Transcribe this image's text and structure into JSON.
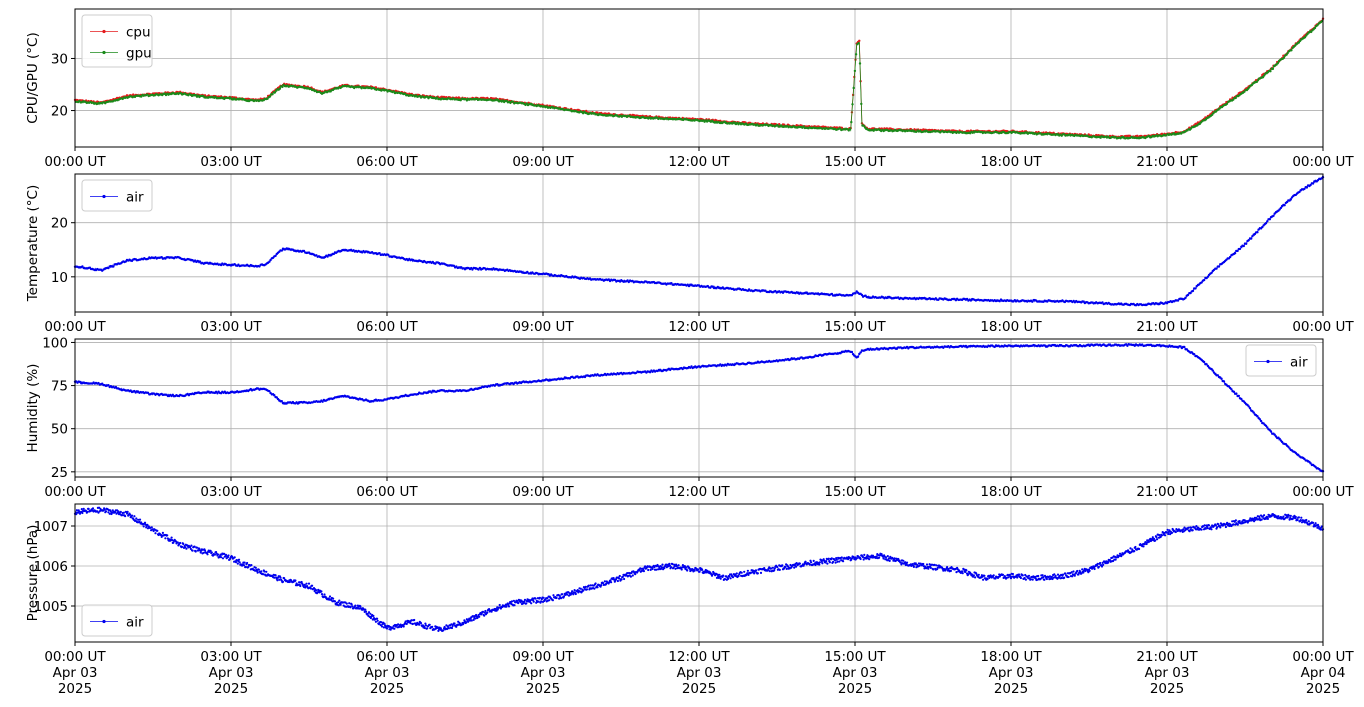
{
  "chart_data": [
    {
      "type": "line",
      "ylabel": "CPU/GPU (°C)",
      "ylim": [
        13,
        39.5
      ],
      "yticks": [
        20,
        30
      ],
      "grid": true,
      "legend_position": "upper-left",
      "x_tick_labels": [
        "00:00 UT",
        "03:00 UT",
        "06:00 UT",
        "09:00 UT",
        "12:00 UT",
        "15:00 UT",
        "18:00 UT",
        "21:00 UT",
        "00:00 UT"
      ],
      "x": [
        "2025-04-03T00:00",
        "2025-04-03T00:30",
        "2025-04-03T01:00",
        "2025-04-03T01:30",
        "2025-04-03T02:00",
        "2025-04-03T02:30",
        "2025-04-03T03:00",
        "2025-04-03T03:30",
        "2025-04-03T03:40",
        "2025-04-03T04:00",
        "2025-04-03T04:30",
        "2025-04-03T04:45",
        "2025-04-03T05:10",
        "2025-04-03T05:40",
        "2025-04-03T06:00",
        "2025-04-03T06:30",
        "2025-04-03T07:00",
        "2025-04-03T07:30",
        "2025-04-03T08:00",
        "2025-04-03T09:00",
        "2025-04-03T10:00",
        "2025-04-03T11:00",
        "2025-04-03T12:00",
        "2025-04-03T13:00",
        "2025-04-03T14:00",
        "2025-04-03T14:55",
        "2025-04-03T15:02",
        "2025-04-03T15:05",
        "2025-04-03T15:08",
        "2025-04-03T15:15",
        "2025-04-03T16:00",
        "2025-04-03T17:00",
        "2025-04-03T18:00",
        "2025-04-03T19:00",
        "2025-04-03T20:00",
        "2025-04-03T20:30",
        "2025-04-03T21:00",
        "2025-04-03T21:20",
        "2025-04-03T21:40",
        "2025-04-03T22:00",
        "2025-04-03T22:30",
        "2025-04-03T23:00",
        "2025-04-03T23:30",
        "2025-04-04T00:00"
      ],
      "series": [
        {
          "name": "cpu",
          "color": "#e41a1c",
          "values": [
            22,
            21.5,
            22.8,
            23.2,
            23.5,
            22.8,
            22.5,
            22,
            22.3,
            25,
            24.5,
            23.5,
            24.8,
            24.5,
            24,
            23,
            22.5,
            22.3,
            22.3,
            21,
            19.5,
            18.8,
            18.3,
            17.5,
            17,
            16.5,
            33,
            33.5,
            17.5,
            16.5,
            16.3,
            16,
            16,
            15.5,
            15,
            15,
            15.5,
            16,
            18,
            20.5,
            24,
            28,
            33,
            37.5
          ]
        },
        {
          "name": "gpu",
          "color": "#1a8a1a",
          "values": [
            21.8,
            21.3,
            22.6,
            23,
            23.3,
            22.6,
            22.3,
            21.8,
            22.1,
            24.8,
            24.3,
            23.3,
            24.6,
            24.3,
            23.8,
            22.8,
            22.3,
            22.1,
            22.1,
            20.8,
            19.3,
            18.6,
            18.1,
            17.3,
            16.8,
            16.3,
            32.5,
            33,
            17.3,
            16.3,
            16.1,
            15.8,
            15.8,
            15.3,
            14.8,
            14.8,
            15.3,
            15.8,
            17.8,
            20.3,
            23.8,
            27.8,
            32.8,
            37.3
          ]
        }
      ]
    },
    {
      "type": "line",
      "ylabel": "Temperature (°C)",
      "ylim": [
        3.5,
        29
      ],
      "yticks": [
        10,
        20
      ],
      "grid": true,
      "legend_position": "upper-left",
      "x_tick_labels": [
        "00:00 UT",
        "03:00 UT",
        "06:00 UT",
        "09:00 UT",
        "12:00 UT",
        "15:00 UT",
        "18:00 UT",
        "21:00 UT",
        "00:00 UT"
      ],
      "x": [
        "2025-04-03T00:00",
        "2025-04-03T00:30",
        "2025-04-03T01:00",
        "2025-04-03T01:30",
        "2025-04-03T02:00",
        "2025-04-03T02:30",
        "2025-04-03T03:00",
        "2025-04-03T03:30",
        "2025-04-03T03:40",
        "2025-04-03T04:00",
        "2025-04-03T04:30",
        "2025-04-03T04:45",
        "2025-04-03T05:10",
        "2025-04-03T05:40",
        "2025-04-03T06:00",
        "2025-04-03T06:30",
        "2025-04-03T07:00",
        "2025-04-03T07:30",
        "2025-04-03T08:00",
        "2025-04-03T09:00",
        "2025-04-03T10:00",
        "2025-04-03T11:00",
        "2025-04-03T12:00",
        "2025-04-03T13:00",
        "2025-04-03T14:00",
        "2025-04-03T14:55",
        "2025-04-03T15:02",
        "2025-04-03T15:05",
        "2025-04-03T15:08",
        "2025-04-03T15:15",
        "2025-04-03T16:00",
        "2025-04-03T17:00",
        "2025-04-03T18:00",
        "2025-04-03T19:00",
        "2025-04-03T20:00",
        "2025-04-03T20:30",
        "2025-04-03T21:00",
        "2025-04-03T21:20",
        "2025-04-03T21:40",
        "2025-04-03T22:00",
        "2025-04-03T22:30",
        "2025-04-03T23:00",
        "2025-04-03T23:30",
        "2025-04-04T00:00"
      ],
      "series": [
        {
          "name": "air",
          "color": "#0000ee",
          "values": [
            12,
            11.2,
            13,
            13.5,
            13.5,
            12.5,
            12.2,
            12,
            12.3,
            15.2,
            14.5,
            13.5,
            15,
            14.5,
            14,
            13,
            12.5,
            11.5,
            11.5,
            10.5,
            9.5,
            9,
            8.3,
            7.5,
            7,
            6.5,
            7.2,
            7,
            6.5,
            6.3,
            6,
            5.8,
            5.6,
            5.5,
            5,
            4.8,
            5.2,
            6,
            9,
            12,
            16,
            21,
            25.5,
            28.5
          ]
        }
      ]
    },
    {
      "type": "line",
      "ylabel": "Humidity (%)",
      "ylim": [
        22,
        102
      ],
      "yticks": [
        25,
        50,
        75,
        100
      ],
      "grid": true,
      "legend_position": "upper-right",
      "x_tick_labels": [
        "00:00 UT",
        "03:00 UT",
        "06:00 UT",
        "09:00 UT",
        "12:00 UT",
        "15:00 UT",
        "18:00 UT",
        "21:00 UT",
        "00:00 UT"
      ],
      "x": [
        "2025-04-03T00:00",
        "2025-04-03T00:30",
        "2025-04-03T01:00",
        "2025-04-03T01:30",
        "2025-04-03T02:00",
        "2025-04-03T02:30",
        "2025-04-03T03:00",
        "2025-04-03T03:30",
        "2025-04-03T03:40",
        "2025-04-03T04:00",
        "2025-04-03T04:30",
        "2025-04-03T04:45",
        "2025-04-03T05:10",
        "2025-04-03T05:40",
        "2025-04-03T06:00",
        "2025-04-03T06:30",
        "2025-04-03T07:00",
        "2025-04-03T07:30",
        "2025-04-03T08:00",
        "2025-04-03T09:00",
        "2025-04-03T10:00",
        "2025-04-03T11:00",
        "2025-04-03T12:00",
        "2025-04-03T13:00",
        "2025-04-03T14:00",
        "2025-04-03T14:55",
        "2025-04-03T15:02",
        "2025-04-03T15:05",
        "2025-04-03T15:08",
        "2025-04-03T15:15",
        "2025-04-03T16:00",
        "2025-04-03T17:00",
        "2025-04-03T18:00",
        "2025-04-03T19:00",
        "2025-04-03T20:00",
        "2025-04-03T20:30",
        "2025-04-03T21:00",
        "2025-04-03T21:20",
        "2025-04-03T21:40",
        "2025-04-03T22:00",
        "2025-04-03T22:30",
        "2025-04-03T23:00",
        "2025-04-03T23:30",
        "2025-04-04T00:00"
      ],
      "series": [
        {
          "name": "air",
          "color": "#0000ee",
          "values": [
            77,
            76,
            72,
            70,
            69,
            71,
            71,
            73,
            73,
            65,
            65,
            66,
            69,
            66,
            67,
            70,
            72,
            72,
            75,
            78,
            81,
            83,
            86,
            88,
            91,
            95,
            91,
            93,
            95,
            96,
            97,
            97.5,
            98,
            98,
            98.5,
            98.5,
            98,
            97,
            90,
            80,
            65,
            48,
            35,
            25
          ]
        }
      ]
    },
    {
      "type": "scatter",
      "ylabel": "Pressure (hPa)",
      "ylim": [
        1004.1,
        1007.55
      ],
      "yticks": [
        1005,
        1006,
        1007
      ],
      "grid": true,
      "legend_position": "lower-left",
      "x_tick_labels": [
        "00:00 UT\nApr 03\n2025",
        "03:00 UT\nApr 03\n2025",
        "06:00 UT\nApr 03\n2025",
        "09:00 UT\nApr 03\n2025",
        "12:00 UT\nApr 03\n2025",
        "15:00 UT\nApr 03\n2025",
        "18:00 UT\nApr 03\n2025",
        "21:00 UT\nApr 03\n2025",
        "00:00 UT\nApr 04\n2025"
      ],
      "x": [
        "2025-04-03T00:00",
        "2025-04-03T00:30",
        "2025-04-03T01:00",
        "2025-04-03T01:30",
        "2025-04-03T02:00",
        "2025-04-03T02:30",
        "2025-04-03T03:00",
        "2025-04-03T03:30",
        "2025-04-03T04:00",
        "2025-04-03T04:30",
        "2025-04-03T05:00",
        "2025-04-03T05:30",
        "2025-04-03T06:00",
        "2025-04-03T06:30",
        "2025-04-03T07:00",
        "2025-04-03T07:30",
        "2025-04-03T08:00",
        "2025-04-03T08:30",
        "2025-04-03T09:00",
        "2025-04-03T09:30",
        "2025-04-03T10:00",
        "2025-04-03T10:30",
        "2025-04-03T11:00",
        "2025-04-03T11:30",
        "2025-04-03T12:00",
        "2025-04-03T12:30",
        "2025-04-03T13:00",
        "2025-04-03T14:00",
        "2025-04-03T15:00",
        "2025-04-03T15:30",
        "2025-04-03T16:00",
        "2025-04-03T17:00",
        "2025-04-03T17:30",
        "2025-04-03T18:00",
        "2025-04-03T18:30",
        "2025-04-03T19:00",
        "2025-04-03T19:30",
        "2025-04-03T20:00",
        "2025-04-03T20:30",
        "2025-04-03T21:00",
        "2025-04-03T22:00",
        "2025-04-03T23:00",
        "2025-04-03T23:30",
        "2025-04-04T00:00"
      ],
      "series": [
        {
          "name": "air",
          "color": "#0000ee",
          "values": [
            1007.35,
            1007.4,
            1007.3,
            1006.9,
            1006.55,
            1006.35,
            1006.2,
            1005.9,
            1005.65,
            1005.5,
            1005.1,
            1004.95,
            1004.45,
            1004.6,
            1004.4,
            1004.6,
            1004.9,
            1005.1,
            1005.15,
            1005.3,
            1005.5,
            1005.7,
            1005.95,
            1006.0,
            1005.9,
            1005.7,
            1005.85,
            1006.05,
            1006.2,
            1006.25,
            1006.05,
            1005.9,
            1005.7,
            1005.75,
            1005.7,
            1005.75,
            1005.9,
            1006.2,
            1006.5,
            1006.85,
            1007.0,
            1007.25,
            1007.2,
            1006.95
          ]
        }
      ]
    }
  ]
}
